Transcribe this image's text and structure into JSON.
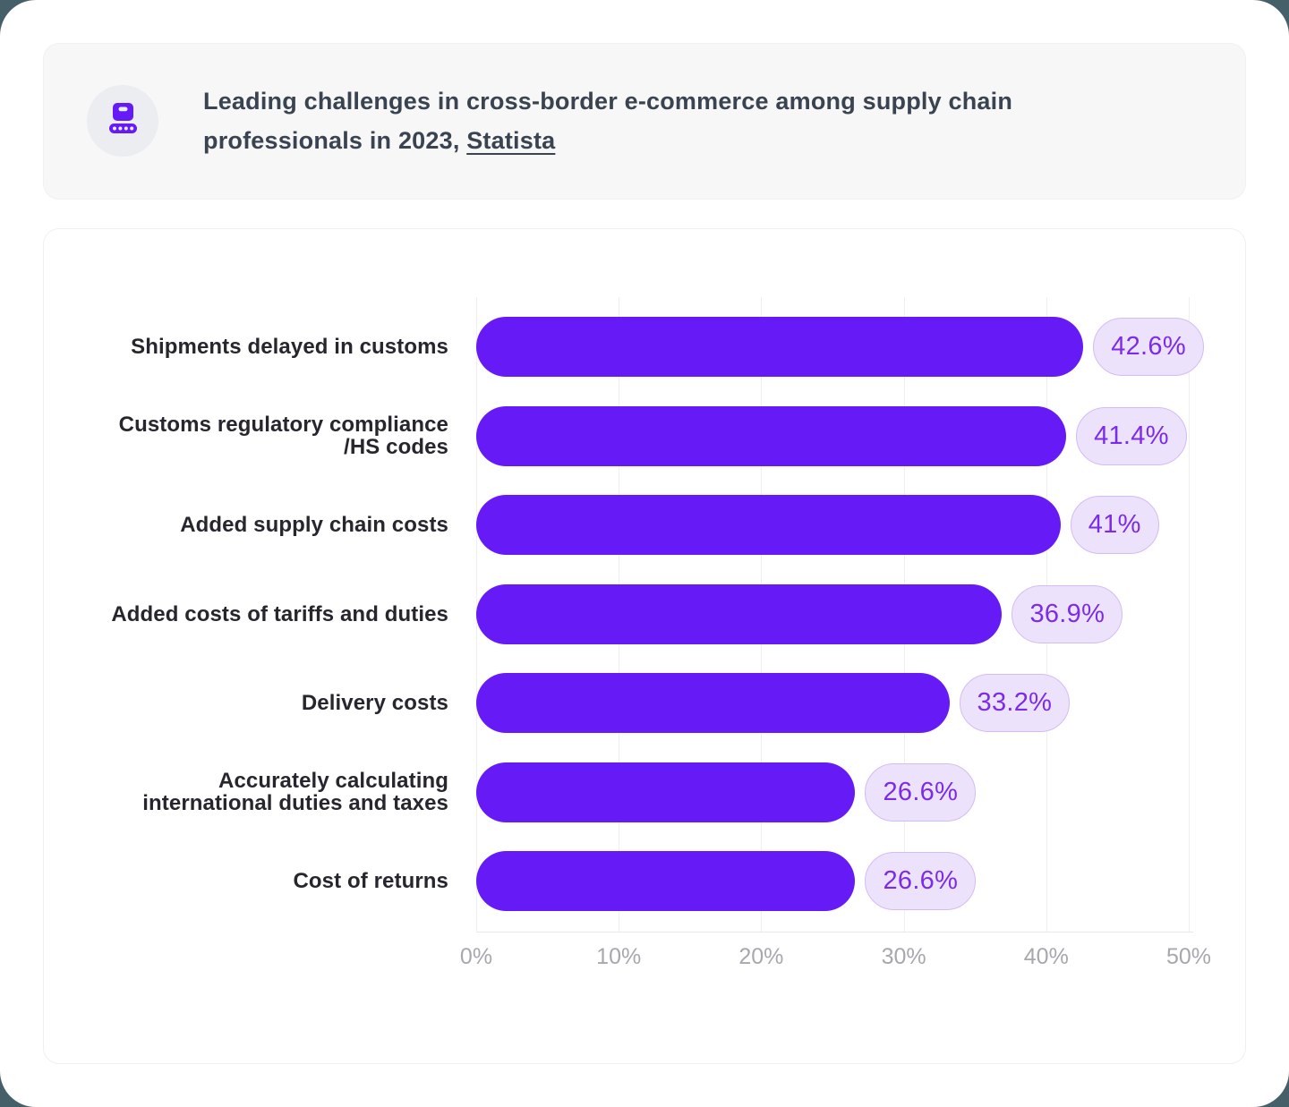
{
  "header": {
    "icon": "package-conveyor-icon",
    "title_line1": "Leading challenges in cross-border e-commerce among supply chain",
    "title_line2": "professionals in 2023, ",
    "source_label": "Statista"
  },
  "colors": {
    "bar": "#661AF6",
    "badge_bg": "#EDE2FB",
    "badge_border": "#D5BBF4",
    "badge_text": "#7B2CE8",
    "category_text": "#26272E",
    "axis_text": "#A6A8AE",
    "title_text": "#3A4350",
    "backdrop": "#456069"
  },
  "chart_data": {
    "type": "bar",
    "orientation": "horizontal",
    "title": "Leading challenges in cross-border e-commerce among supply chain professionals in 2023, Statista",
    "categories": [
      "Shipments delayed in customs",
      "Customs regulatory compliance\n/HS codes",
      "Added supply chain costs",
      "Added costs of tariffs and duties",
      "Delivery costs",
      "Accurately calculating\ninternational duties and taxes",
      "Cost of returns"
    ],
    "values": [
      42.6,
      41.4,
      41,
      36.9,
      33.2,
      26.6,
      26.6
    ],
    "value_labels": [
      "42.6%",
      "41.4%",
      "41%",
      "36.9%",
      "33.2%",
      "26.6%",
      "26.6%"
    ],
    "xlabel": "",
    "ylabel": "",
    "xlim": [
      0,
      50
    ],
    "x_ticks": [
      "0%",
      "10%",
      "20%",
      "30%",
      "40%",
      "50%"
    ],
    "grid": "vertical-only",
    "legend": "none"
  }
}
